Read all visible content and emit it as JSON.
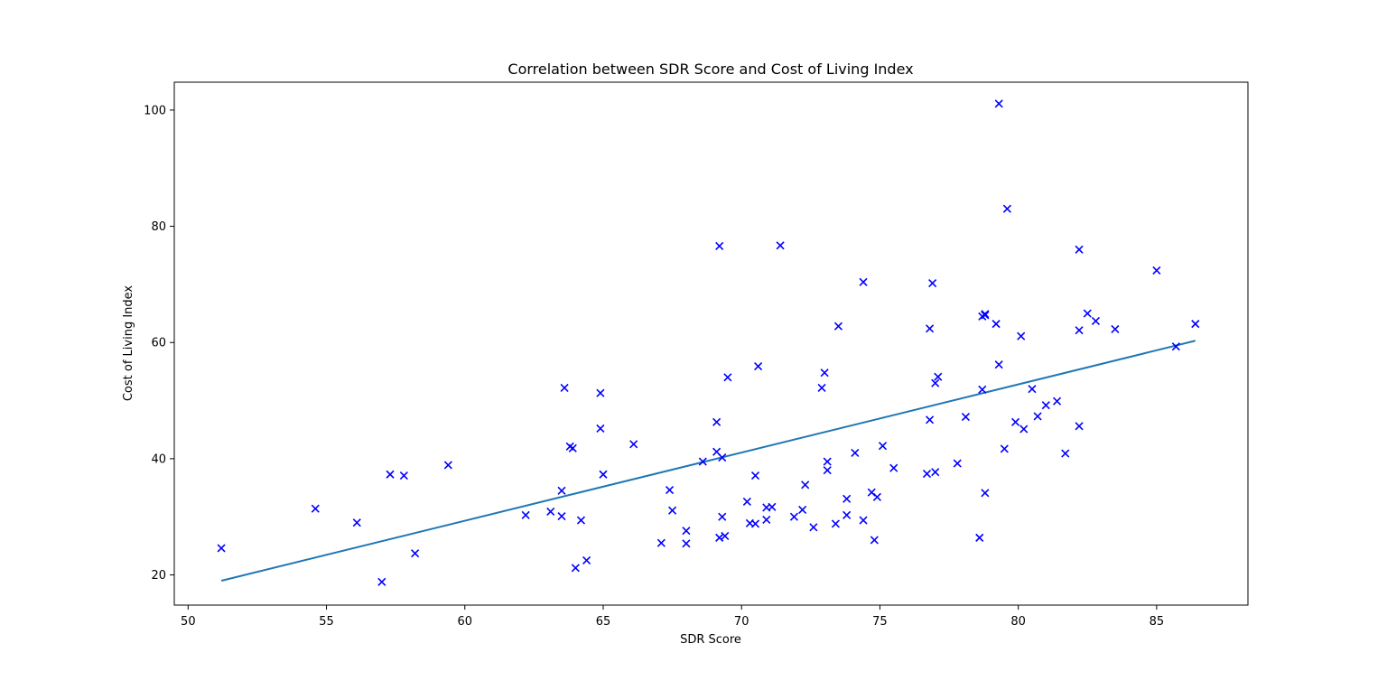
{
  "chart_data": {
    "type": "scatter",
    "title": "Correlation between SDR Score and Cost of Living Index",
    "xlabel": "SDR Score",
    "ylabel": "Cost of Living Index",
    "xlim": [
      49.5,
      88.3
    ],
    "ylim": [
      14.8,
      104.8
    ],
    "xticks": [
      50,
      55,
      60,
      65,
      70,
      75,
      80,
      85
    ],
    "yticks": [
      20,
      40,
      60,
      80,
      100
    ],
    "grid": false,
    "marker_color": "#0000ff",
    "fit_color": "#1f77b4",
    "series": [
      {
        "type": "scatter",
        "marker": "x",
        "points": [
          [
            51.2,
            24.6
          ],
          [
            54.6,
            31.4
          ],
          [
            56.1,
            29.0
          ],
          [
            57.0,
            18.8
          ],
          [
            57.3,
            37.3
          ],
          [
            57.8,
            37.1
          ],
          [
            58.2,
            23.7
          ],
          [
            59.4,
            38.9
          ],
          [
            62.2,
            30.3
          ],
          [
            63.1,
            30.9
          ],
          [
            63.5,
            30.1
          ],
          [
            63.5,
            34.5
          ],
          [
            63.6,
            52.2
          ],
          [
            63.8,
            42.1
          ],
          [
            63.9,
            41.8
          ],
          [
            64.0,
            21.2
          ],
          [
            64.2,
            29.4
          ],
          [
            64.4,
            22.5
          ],
          [
            64.9,
            51.3
          ],
          [
            64.9,
            45.2
          ],
          [
            65.0,
            37.3
          ],
          [
            66.1,
            42.5
          ],
          [
            67.1,
            25.5
          ],
          [
            67.4,
            34.6
          ],
          [
            67.5,
            31.1
          ],
          [
            68.0,
            27.6
          ],
          [
            68.0,
            25.4
          ],
          [
            68.6,
            39.5
          ],
          [
            69.1,
            46.3
          ],
          [
            69.1,
            41.2
          ],
          [
            69.2,
            76.6
          ],
          [
            69.2,
            26.4
          ],
          [
            69.3,
            40.2
          ],
          [
            69.3,
            30.0
          ],
          [
            69.4,
            26.7
          ],
          [
            69.5,
            54.0
          ],
          [
            70.2,
            32.6
          ],
          [
            70.3,
            28.9
          ],
          [
            70.5,
            37.1
          ],
          [
            70.5,
            28.8
          ],
          [
            70.6,
            55.9
          ],
          [
            70.9,
            31.6
          ],
          [
            70.9,
            29.5
          ],
          [
            71.1,
            31.7
          ],
          [
            71.4,
            76.7
          ],
          [
            71.9,
            30.0
          ],
          [
            72.2,
            31.2
          ],
          [
            72.3,
            35.5
          ],
          [
            72.6,
            28.2
          ],
          [
            72.9,
            52.2
          ],
          [
            73.0,
            54.8
          ],
          [
            73.1,
            39.5
          ],
          [
            73.1,
            38.0
          ],
          [
            73.4,
            28.8
          ],
          [
            73.5,
            62.8
          ],
          [
            73.8,
            30.3
          ],
          [
            73.8,
            33.1
          ],
          [
            74.1,
            41.0
          ],
          [
            74.4,
            70.4
          ],
          [
            74.4,
            29.4
          ],
          [
            74.7,
            34.2
          ],
          [
            74.8,
            26.0
          ],
          [
            74.9,
            33.4
          ],
          [
            75.1,
            42.2
          ],
          [
            75.5,
            38.4
          ],
          [
            76.7,
            37.4
          ],
          [
            76.8,
            46.7
          ],
          [
            76.8,
            62.4
          ],
          [
            76.9,
            70.2
          ],
          [
            77.0,
            53.0
          ],
          [
            77.0,
            37.7
          ],
          [
            77.1,
            54.1
          ],
          [
            77.8,
            39.2
          ],
          [
            78.1,
            47.2
          ],
          [
            78.6,
            26.4
          ],
          [
            78.7,
            64.5
          ],
          [
            78.7,
            51.9
          ],
          [
            78.8,
            64.7
          ],
          [
            78.8,
            64.9
          ],
          [
            78.8,
            34.1
          ],
          [
            79.2,
            63.2
          ],
          [
            79.3,
            101.1
          ],
          [
            79.3,
            56.2
          ],
          [
            79.5,
            41.7
          ],
          [
            79.6,
            83.0
          ],
          [
            79.9,
            46.3
          ],
          [
            80.1,
            61.1
          ],
          [
            80.2,
            45.1
          ],
          [
            80.5,
            52.0
          ],
          [
            80.7,
            47.3
          ],
          [
            81.0,
            49.2
          ],
          [
            81.4,
            49.9
          ],
          [
            81.7,
            40.9
          ],
          [
            82.2,
            76.0
          ],
          [
            82.2,
            62.1
          ],
          [
            82.2,
            45.6
          ],
          [
            82.5,
            65.0
          ],
          [
            82.8,
            63.7
          ],
          [
            83.5,
            62.3
          ],
          [
            85.0,
            72.4
          ],
          [
            85.7,
            59.3
          ],
          [
            86.4,
            63.2
          ]
        ]
      },
      {
        "type": "line",
        "points": [
          [
            51.2,
            19.0
          ],
          [
            86.4,
            60.3
          ]
        ]
      }
    ]
  }
}
